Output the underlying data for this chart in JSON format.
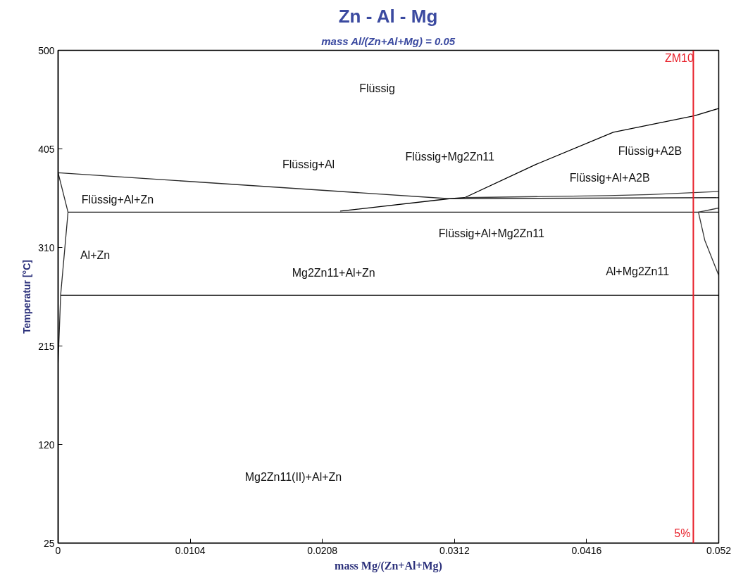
{
  "chart_data": {
    "type": "line",
    "title": "Zn - Al - Mg",
    "subtitle": "mass Al/(Zn+Al+Mg) = 0.05",
    "xlabel": "mass Mg/(Zn+Al+Mg)",
    "ylabel": "Temperatur [°C]",
    "xlim": [
      0,
      0.052
    ],
    "ylim": [
      25,
      500
    ],
    "xticks": [
      0,
      {
        "value": 0.0104,
        "label": "0.0104"
      },
      {
        "value": 0.0208,
        "label": "0.0208"
      },
      {
        "value": 0.0312,
        "label": "0.0312"
      },
      {
        "value": 0.0416,
        "label": "0.0416"
      },
      0.052
    ],
    "yticks": [
      25,
      120,
      215,
      310,
      405,
      500
    ],
    "grid": false,
    "marker": "none",
    "line_style": "solid",
    "series": [
      {
        "color": "#000000",
        "x": [
          0.052,
          0.0501,
          0.0437,
          0.0376,
          0.032,
          0.0308,
          0.0222
        ],
        "values": [
          444,
          437,
          421,
          390,
          358,
          357,
          345
        ]
      },
      {
        "color": "#2b2b2b",
        "x": [
          0.052,
          0.0308,
          0,
          0.00078,
          0.0002,
          0,
          0
        ],
        "values": [
          358,
          357,
          382,
          344,
          264,
          198,
          25
        ]
      },
      {
        "color": "#3a3a3a",
        "x": [
          0.052,
          0.0466,
          0.0433,
          0.032
        ],
        "values": [
          364,
          361,
          360,
          358
        ]
      },
      {
        "color": "#1a1a1a",
        "x": [
          0.00078,
          0.052
        ],
        "values": [
          344,
          344
        ]
      },
      {
        "color": "#333333",
        "x": [
          0.052,
          0.0504,
          0.0509,
          0.052
        ],
        "values": [
          348,
          344,
          317,
          283
        ]
      },
      {
        "color": "#000000",
        "x": [
          0.0002,
          0.052
        ],
        "values": [
          264,
          264
        ]
      }
    ],
    "ref_lines": [
      {
        "axis": "x",
        "value": 0.05,
        "label": "5%",
        "color": "#e8202a"
      }
    ],
    "annotations": [
      "Flüssig",
      "Flüssig+Al",
      "Flüssig+Mg2Zn11",
      "Flüssig+A2B",
      "Flüssig+Al+A2B",
      "Flüssig+Al+Zn",
      "Flüssig+Al+Mg2Zn11",
      "Al+Zn",
      "Mg2Zn11+Al+Zn",
      "Al+Mg2Zn11",
      "Mg2Zn11(II)+Al+Zn",
      "ZM10"
    ]
  }
}
